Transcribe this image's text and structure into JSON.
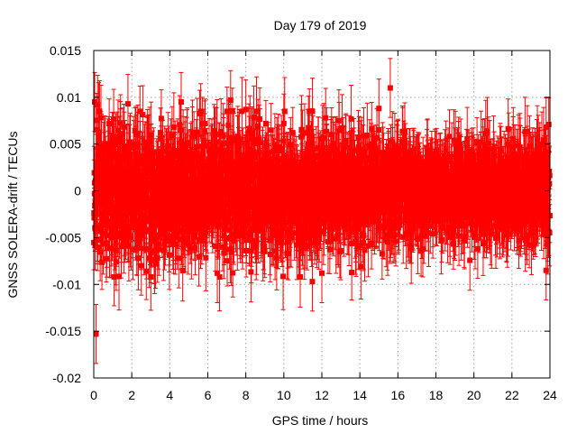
{
  "chart_data": {
    "type": "scatter",
    "title": "Day 179 of 2019",
    "xlabel": "GPS time / hours",
    "ylabel": "GNSS SOLERA-drift / TECUs",
    "xlim": [
      0,
      24
    ],
    "ylim": [
      -0.02,
      0.015
    ],
    "xticks": [
      0,
      2,
      4,
      6,
      8,
      10,
      12,
      14,
      16,
      18,
      20,
      22,
      24
    ],
    "xtick_labels": [
      "0",
      "2",
      "4",
      "6",
      "8",
      "10",
      "12",
      "14",
      "16",
      "18",
      "20",
      "22",
      "24"
    ],
    "yticks": [
      -0.02,
      -0.015,
      -0.01,
      -0.005,
      0,
      0.005,
      0.01,
      0.015
    ],
    "ytick_labels": [
      "-0.02",
      "-0.015",
      "-0.01",
      "-0.005",
      "0",
      "0.005",
      "0.01",
      "0.015"
    ],
    "grid": true,
    "series": [
      {
        "name": "GNSS SOLERA-drift",
        "color": "#ff0000",
        "marker": "square",
        "error_bars": true,
        "error_magnitude_typical": 0.003,
        "points_per_hour": 120,
        "noise_profile": [
          {
            "x": 0,
            "sd": 0.0036
          },
          {
            "x": 1,
            "sd": 0.0036
          },
          {
            "x": 8,
            "sd": 0.0032
          },
          {
            "x": 13,
            "sd": 0.0029
          },
          {
            "x": 16,
            "sd": 0.0026
          },
          {
            "x": 19,
            "sd": 0.0022
          },
          {
            "x": 22,
            "sd": 0.0024
          },
          {
            "x": 24,
            "sd": 0.0027
          }
        ],
        "notable_points": [
          {
            "x": 0.12,
            "y": -0.0153
          },
          {
            "x": 0.05,
            "y": 0.0095
          },
          {
            "x": 0.2,
            "y": 0.0092
          },
          {
            "x": 1.8,
            "y": 0.0093
          },
          {
            "x": 4.6,
            "y": 0.0095
          },
          {
            "x": 7.2,
            "y": 0.0097
          },
          {
            "x": 8.0,
            "y": 0.0087
          },
          {
            "x": 10.0,
            "y": 0.0072
          },
          {
            "x": 12.2,
            "y": 0.0078
          },
          {
            "x": 15.0,
            "y": 0.0088
          },
          {
            "x": 15.6,
            "y": 0.011
          },
          {
            "x": 23.8,
            "y": 0.0068
          },
          {
            "x": 11.5,
            "y": -0.0097
          },
          {
            "x": 12.0,
            "y": -0.0088
          },
          {
            "x": 6.5,
            "y": -0.0088
          },
          {
            "x": 2.5,
            "y": -0.008
          },
          {
            "x": 23.8,
            "y": -0.0085
          },
          {
            "x": 20.2,
            "y": -0.0062
          }
        ]
      }
    ]
  }
}
